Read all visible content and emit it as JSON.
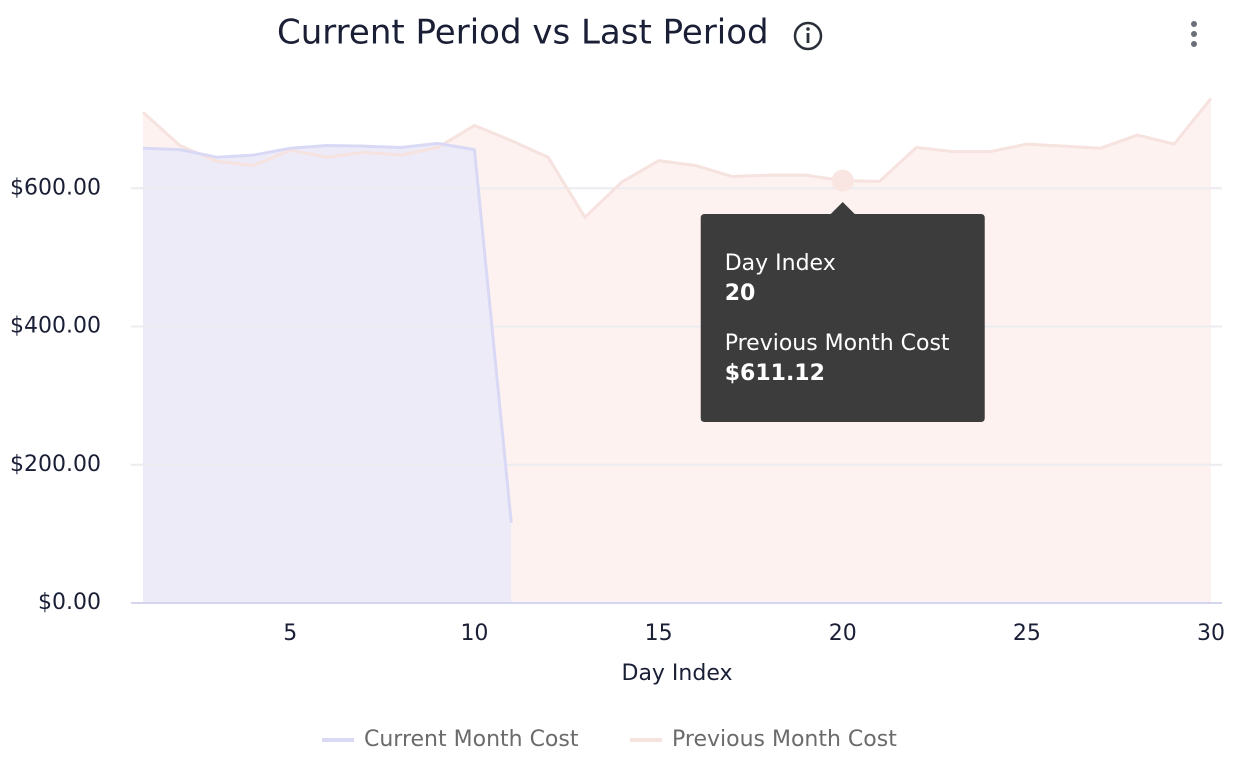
{
  "chart_data": {
    "type": "area",
    "title": "Current Period vs Last Period",
    "xlabel": "Day Index",
    "x": [
      1,
      2,
      3,
      4,
      5,
      6,
      7,
      8,
      9,
      10,
      11,
      12,
      13,
      14,
      15,
      16,
      17,
      18,
      19,
      20,
      21,
      22,
      23,
      24,
      25,
      26,
      27,
      28,
      29,
      30
    ],
    "series": [
      {
        "name": "Current Month Cost",
        "color": "#d9d9f6",
        "fill": "#edebf7",
        "values": [
          658,
          656,
          645,
          648,
          658,
          662,
          661,
          659,
          665,
          656,
          116,
          null,
          null,
          null,
          null,
          null,
          null,
          null,
          null,
          null,
          null,
          null,
          null,
          null,
          null,
          null,
          null,
          null,
          null,
          null
        ]
      },
      {
        "name": "Previous Month Cost",
        "color": "#f6e2de",
        "fill": "#fdf2f0",
        "values": [
          710,
          662,
          639,
          633,
          655,
          645,
          652,
          648,
          659,
          691,
          669,
          645,
          558,
          609,
          640,
          633,
          617,
          619,
          619,
          611.12,
          610,
          659,
          653,
          653,
          664,
          661,
          658,
          677,
          664,
          730
        ]
      }
    ],
    "xlim": [
      1,
      30
    ],
    "xticks": [
      5,
      10,
      15,
      20,
      25,
      30
    ],
    "ylim": [
      0,
      735
    ],
    "yticks": [
      {
        "value": 0,
        "label": "$0.00"
      },
      {
        "value": 200,
        "label": "$200.00"
      },
      {
        "value": 400,
        "label": "$400.00"
      },
      {
        "value": 600,
        "label": "$600.00"
      }
    ],
    "grid": true,
    "tooltip": {
      "series_index": 1,
      "point_index": 19,
      "x_title": "Day Index",
      "x_value": 20,
      "series_title": "Previous Month Cost",
      "value_label": "$611.12"
    }
  }
}
